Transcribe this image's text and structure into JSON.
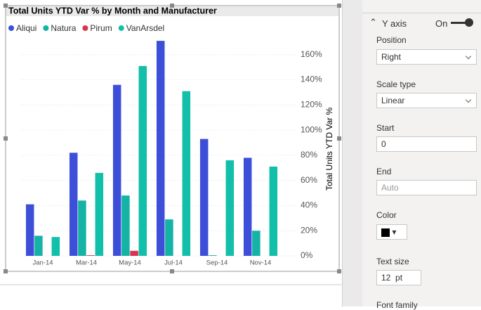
{
  "chart_data": {
    "type": "bar",
    "title": "Total Units YTD Var % by Month and Manufacturer",
    "categories": [
      "Jan-14",
      "Mar-14",
      "May-14",
      "Jul-14",
      "Sep-14",
      "Nov-14"
    ],
    "series": [
      {
        "name": "Aliqui",
        "color": "#3d4fd9",
        "values": [
          41,
          82,
          136,
          171,
          93,
          78
        ]
      },
      {
        "name": "Natura",
        "color": "#15b3a6",
        "values": [
          16,
          44,
          48,
          29,
          0.5,
          20
        ]
      },
      {
        "name": "Pirum",
        "color": "#d9334e",
        "values": [
          null,
          0.5,
          4,
          null,
          null,
          null
        ]
      },
      {
        "name": "VanArsdel",
        "color": "#12bfa8",
        "values": [
          15,
          66,
          151,
          131,
          76,
          71
        ]
      }
    ],
    "y_label": "Total Units YTD Var %",
    "ylim": [
      0,
      180
    ],
    "yticks": [
      {
        "value": 0,
        "label": "0%"
      },
      {
        "value": 20,
        "label": "20%"
      },
      {
        "value": 40,
        "label": "40%"
      },
      {
        "value": 60,
        "label": "60%"
      },
      {
        "value": 80,
        "label": "80%"
      },
      {
        "value": 100,
        "label": "100%"
      },
      {
        "value": 120,
        "label": "120%"
      },
      {
        "value": 140,
        "label": "140%"
      },
      {
        "value": 160,
        "label": "160%"
      }
    ],
    "grid": true,
    "legend": "top-left"
  },
  "pane": {
    "section": "Y axis",
    "toggle": "On",
    "fields": [
      {
        "label": "Position",
        "value": "Right"
      },
      {
        "label": "Scale type",
        "value": "Linear"
      },
      {
        "label": "Start",
        "value": "0"
      },
      {
        "label": "End",
        "value": "Auto"
      },
      {
        "label": "Color"
      },
      {
        "label": "Text size",
        "value": "12",
        "unit": "pt"
      },
      {
        "label": "Font family"
      }
    ]
  }
}
